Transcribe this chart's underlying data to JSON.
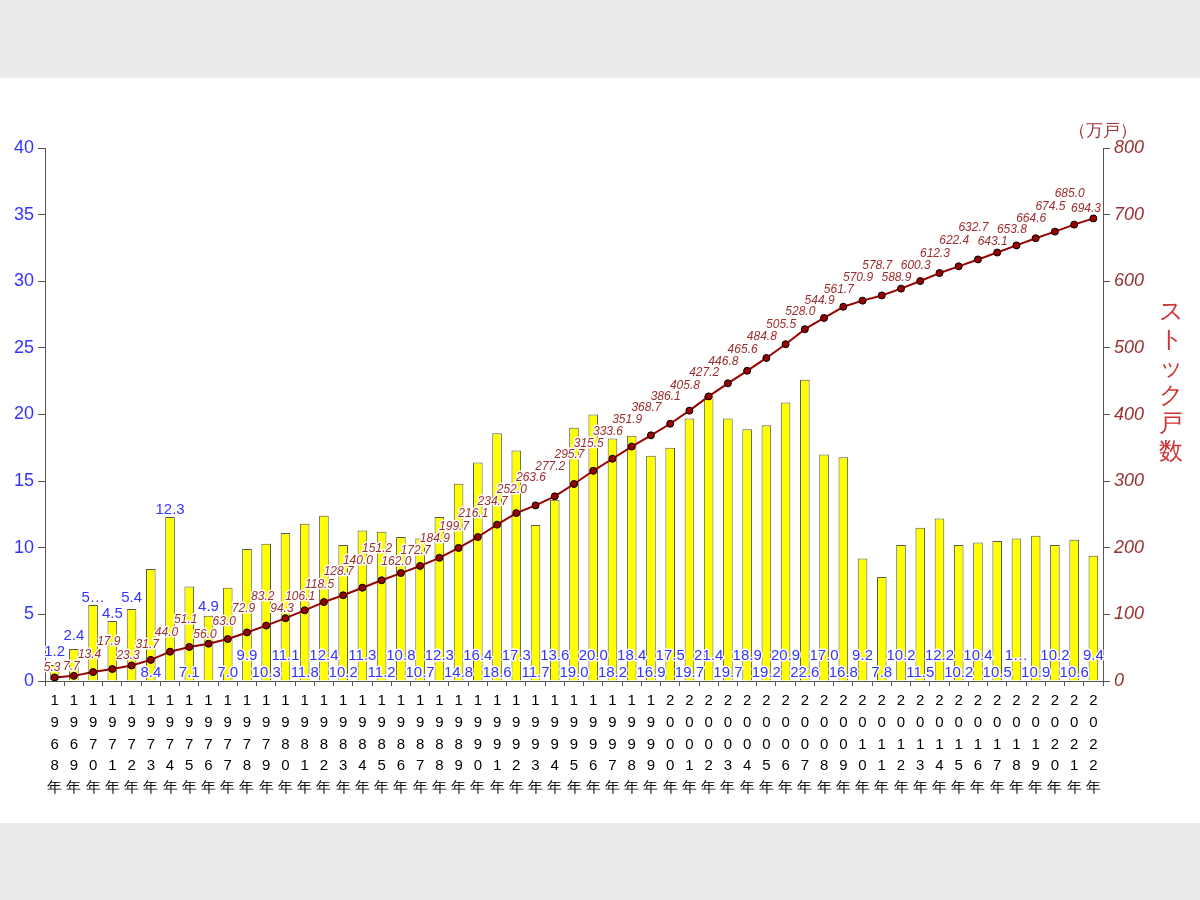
{
  "chart_data": {
    "type": "bar",
    "categories": [
      "1968年",
      "1969年",
      "1970年",
      "1971年",
      "1972年",
      "1973年",
      "1974年",
      "1975年",
      "1976年",
      "1977年",
      "1978年",
      "1979年",
      "1980年",
      "1981年",
      "1982年",
      "1983年",
      "1984年",
      "1985年",
      "1986年",
      "1987年",
      "1988年",
      "1989年",
      "1990年",
      "1991年",
      "1992年",
      "1993年",
      "1994年",
      "1995年",
      "1996年",
      "1997年",
      "1998年",
      "1999年",
      "2000年",
      "2001年",
      "2002年",
      "2003年",
      "2004年",
      "2005年",
      "2006年",
      "2007年",
      "2008年",
      "2009年",
      "2010年",
      "2011年",
      "2012年",
      "2013年",
      "2014年",
      "2015年",
      "2016年",
      "2017年",
      "2018年",
      "2019年",
      "2020年",
      "2021年",
      "2022年"
    ],
    "ylim": [
      0,
      40
    ],
    "yticks": [
      0,
      5,
      10,
      15,
      20,
      25,
      30,
      35,
      40
    ],
    "y2lim": [
      0,
      800
    ],
    "y2ticks": [
      0,
      100,
      200,
      300,
      400,
      500,
      600,
      700,
      800
    ],
    "y2label": "ストック戸数",
    "annotations": [
      "（万戸）"
    ],
    "marker": "circle",
    "series": [
      {
        "color": "#ffff00",
        "values": [
          1.2,
          2.4,
          5.7,
          4.5,
          5.4,
          8.4,
          12.3,
          7.1,
          4.9,
          7.0,
          9.9,
          10.3,
          11.1,
          11.8,
          12.4,
          10.2,
          11.3,
          11.2,
          10.8,
          10.7,
          12.3,
          14.8,
          16.4,
          18.6,
          17.3,
          11.7,
          13.6,
          19.0,
          20.0,
          18.2,
          18.4,
          16.9,
          17.5,
          19.7,
          21.4,
          19.7,
          18.9,
          19.2,
          20.9,
          22.6,
          17.0,
          16.8,
          9.2,
          7.8,
          10.2,
          11.5,
          12.2,
          10.2,
          10.4,
          10.5,
          10.7,
          10.9,
          10.2,
          10.6,
          9.4
        ],
        "value_labels": [
          "1.2",
          "2.4",
          "5…",
          "4.5",
          "5.4",
          "8.4",
          "12.3",
          "7.1",
          "4.9",
          "7.0",
          "9.9",
          "10.3",
          "11.1",
          "11.8",
          "12.4",
          "10.2",
          "11.3",
          "11.2",
          "10.8",
          "10.7",
          "12.3",
          "14.8",
          "16.4",
          "18.6",
          "17.3",
          "11.7",
          "13.6",
          "19.0",
          "20.0",
          "18.2",
          "18.4",
          "16.9",
          "17.5",
          "19.7",
          "21.4",
          "19.7",
          "18.9",
          "19.2",
          "20.9",
          "22.6",
          "17.0",
          "16.8",
          "9.2",
          "7.8",
          "10.2",
          "11.5",
          "12.2",
          "10.2",
          "10.4",
          "10.5",
          "1…",
          "10.9",
          "10.2",
          "10.6",
          "9.4"
        ]
      },
      {
        "type": "line",
        "axis": "y2",
        "color": "#990000",
        "values": [
          5.3,
          7.7,
          13.4,
          17.9,
          23.3,
          31.7,
          44.0,
          51.1,
          56.0,
          63.0,
          72.9,
          83.2,
          94.3,
          106.1,
          118.5,
          128.7,
          140.0,
          151.2,
          162.0,
          172.7,
          184.9,
          199.7,
          216.1,
          234.7,
          252.0,
          263.6,
          277.2,
          295.7,
          315.5,
          333.6,
          351.9,
          368.7,
          386.1,
          405.8,
          427.2,
          446.8,
          465.6,
          484.8,
          505.5,
          528.0,
          544.9,
          561.7,
          570.9,
          578.7,
          588.9,
          600.3,
          612.3,
          622.4,
          632.7,
          643.1,
          653.8,
          664.6,
          674.5,
          685.0,
          694.3
        ],
        "value_labels": [
          "5.3",
          "7.7",
          "13.4",
          "17.9",
          "23.3",
          "31.7",
          "44.0",
          "51.1",
          "56.0",
          "63.0",
          "72.9",
          "83.2",
          "94.3",
          "106.1",
          "118.5",
          "128.7",
          "140.0",
          "151.2",
          "162.0",
          "172.7",
          "184.9",
          "199.7",
          "216.1",
          "234.7",
          "252.0",
          "263.6",
          "277.2",
          "295.7",
          "315.5",
          "333.6",
          "351.9",
          "368.7",
          "386.1",
          "405.8",
          "427.2",
          "446.8",
          "465.6",
          "484.8",
          "505.5",
          "528.0",
          "544.9",
          "561.7",
          "570.9",
          "578.7",
          "588.9",
          "600.3",
          "612.3",
          "622.4",
          "632.7",
          "643.1",
          "653.8",
          "664.6",
          "674.5",
          "685.0",
          "694.3"
        ]
      }
    ]
  }
}
